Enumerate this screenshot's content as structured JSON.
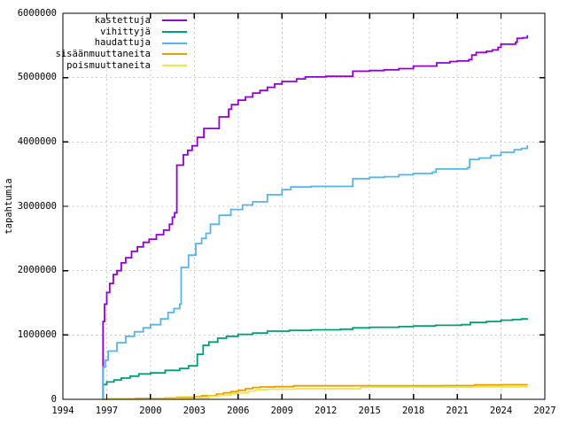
{
  "colors": {
    "background": "#ffffff",
    "border": "#000000",
    "grid": "#c8c8c8",
    "text": "#000000"
  },
  "chart_data": {
    "type": "line",
    "title": "",
    "xlabel": "",
    "ylabel": "tapahtumia",
    "xlim": [
      1994,
      2027
    ],
    "ylim": [
      0,
      6000000
    ],
    "xticks": [
      1994,
      1997,
      2000,
      2003,
      2006,
      2009,
      2012,
      2015,
      2018,
      2021,
      2024,
      2027
    ],
    "yticks": [
      0,
      1000000,
      2000000,
      3000000,
      4000000,
      5000000,
      6000000
    ],
    "grid": true,
    "legend_position": "top-left-inside",
    "interpolation": "step-after",
    "series": [
      {
        "name": "kastettuja",
        "color": "#9400d3",
        "points": [
          [
            1996.7,
            0
          ],
          [
            1996.75,
            1210000
          ],
          [
            1996.85,
            1480000
          ],
          [
            1997.0,
            1660000
          ],
          [
            1997.2,
            1800000
          ],
          [
            1997.45,
            1940000
          ],
          [
            1997.7,
            2000000
          ],
          [
            1998.0,
            2120000
          ],
          [
            1998.3,
            2200000
          ],
          [
            1998.7,
            2300000
          ],
          [
            1999.1,
            2370000
          ],
          [
            1999.5,
            2440000
          ],
          [
            1999.9,
            2490000
          ],
          [
            2000.4,
            2560000
          ],
          [
            2000.9,
            2630000
          ],
          [
            2001.3,
            2720000
          ],
          [
            2001.5,
            2830000
          ],
          [
            2001.65,
            2900000
          ],
          [
            2001.8,
            3640000
          ],
          [
            2002.25,
            3800000
          ],
          [
            2002.55,
            3870000
          ],
          [
            2002.85,
            3940000
          ],
          [
            2003.2,
            4070000
          ],
          [
            2003.65,
            4210000
          ],
          [
            2004.7,
            4390000
          ],
          [
            2005.35,
            4510000
          ],
          [
            2005.55,
            4580000
          ],
          [
            2006.0,
            4650000
          ],
          [
            2006.5,
            4700000
          ],
          [
            2007.0,
            4760000
          ],
          [
            2007.5,
            4800000
          ],
          [
            2008.0,
            4850000
          ],
          [
            2008.5,
            4900000
          ],
          [
            2009.0,
            4940000
          ],
          [
            2010.0,
            4980000
          ],
          [
            2010.6,
            5010000
          ],
          [
            2012.0,
            5020000
          ],
          [
            2013.85,
            5100000
          ],
          [
            2015.0,
            5110000
          ],
          [
            2016.0,
            5120000
          ],
          [
            2017.0,
            5140000
          ],
          [
            2018.0,
            5180000
          ],
          [
            2019.6,
            5230000
          ],
          [
            2020.5,
            5250000
          ],
          [
            2021.0,
            5260000
          ],
          [
            2021.8,
            5280000
          ],
          [
            2022.0,
            5350000
          ],
          [
            2022.3,
            5390000
          ],
          [
            2023.0,
            5410000
          ],
          [
            2023.4,
            5430000
          ],
          [
            2023.8,
            5470000
          ],
          [
            2024.0,
            5520000
          ],
          [
            2025.0,
            5550000
          ],
          [
            2025.1,
            5610000
          ],
          [
            2025.5,
            5620000
          ],
          [
            2025.8,
            5660000
          ]
        ]
      },
      {
        "name": "vihittyjä",
        "color": "#009e73",
        "points": [
          [
            1996.7,
            0
          ],
          [
            1996.75,
            230000
          ],
          [
            1997.0,
            270000
          ],
          [
            1997.5,
            300000
          ],
          [
            1998.0,
            330000
          ],
          [
            1998.6,
            360000
          ],
          [
            1999.2,
            395000
          ],
          [
            2000.0,
            410000
          ],
          [
            2001.0,
            450000
          ],
          [
            2002.0,
            480000
          ],
          [
            2002.6,
            520000
          ],
          [
            2003.2,
            700000
          ],
          [
            2003.6,
            840000
          ],
          [
            2004.0,
            890000
          ],
          [
            2004.6,
            950000
          ],
          [
            2005.2,
            980000
          ],
          [
            2006.0,
            1010000
          ],
          [
            2007.0,
            1030000
          ],
          [
            2008.0,
            1060000
          ],
          [
            2009.5,
            1070000
          ],
          [
            2011.0,
            1080000
          ],
          [
            2013.0,
            1090000
          ],
          [
            2013.85,
            1110000
          ],
          [
            2015.0,
            1120000
          ],
          [
            2017.0,
            1130000
          ],
          [
            2018.0,
            1140000
          ],
          [
            2019.5,
            1150000
          ],
          [
            2021.3,
            1160000
          ],
          [
            2021.9,
            1195000
          ],
          [
            2023.0,
            1210000
          ],
          [
            2024.0,
            1230000
          ],
          [
            2024.8,
            1240000
          ],
          [
            2025.4,
            1250000
          ],
          [
            2025.8,
            1260000
          ]
        ]
      },
      {
        "name": "haudattuja",
        "color": "#56b4e9",
        "points": [
          [
            1996.7,
            0
          ],
          [
            1996.75,
            500000
          ],
          [
            1996.9,
            610000
          ],
          [
            1997.1,
            750000
          ],
          [
            1997.7,
            880000
          ],
          [
            1998.3,
            980000
          ],
          [
            1998.9,
            1050000
          ],
          [
            1999.5,
            1110000
          ],
          [
            2000.0,
            1160000
          ],
          [
            2000.7,
            1250000
          ],
          [
            2001.2,
            1350000
          ],
          [
            2001.6,
            1410000
          ],
          [
            2002.0,
            1480000
          ],
          [
            2002.1,
            2050000
          ],
          [
            2002.6,
            2240000
          ],
          [
            2003.1,
            2420000
          ],
          [
            2003.5,
            2500000
          ],
          [
            2003.8,
            2580000
          ],
          [
            2004.1,
            2720000
          ],
          [
            2004.7,
            2860000
          ],
          [
            2005.5,
            2950000
          ],
          [
            2006.3,
            3020000
          ],
          [
            2007.0,
            3070000
          ],
          [
            2008.0,
            3180000
          ],
          [
            2009.0,
            3260000
          ],
          [
            2009.6,
            3300000
          ],
          [
            2011.0,
            3310000
          ],
          [
            2013.85,
            3430000
          ],
          [
            2015.0,
            3450000
          ],
          [
            2016.0,
            3460000
          ],
          [
            2017.0,
            3490000
          ],
          [
            2018.0,
            3510000
          ],
          [
            2019.3,
            3530000
          ],
          [
            2019.55,
            3580000
          ],
          [
            2021.7,
            3600000
          ],
          [
            2021.85,
            3730000
          ],
          [
            2022.5,
            3750000
          ],
          [
            2023.3,
            3790000
          ],
          [
            2024.0,
            3840000
          ],
          [
            2024.9,
            3880000
          ],
          [
            2025.4,
            3900000
          ],
          [
            2025.8,
            3950000
          ]
        ]
      },
      {
        "name": "sisäänmuuttaneita",
        "color": "#e69f00",
        "points": [
          [
            1996.7,
            0
          ],
          [
            1997.0,
            8000
          ],
          [
            1999.0,
            15000
          ],
          [
            2001.0,
            20000
          ],
          [
            2001.8,
            30000
          ],
          [
            2003.0,
            40000
          ],
          [
            2003.5,
            55000
          ],
          [
            2004.5,
            80000
          ],
          [
            2005.0,
            100000
          ],
          [
            2005.5,
            120000
          ],
          [
            2006.0,
            140000
          ],
          [
            2006.5,
            165000
          ],
          [
            2007.0,
            185000
          ],
          [
            2007.5,
            192000
          ],
          [
            2008.5,
            197000
          ],
          [
            2009.8,
            210000
          ],
          [
            2013.85,
            212000
          ],
          [
            2020.0,
            213000
          ],
          [
            2022.1,
            215000
          ],
          [
            2022.2,
            224000
          ],
          [
            2024.0,
            227000
          ],
          [
            2025.8,
            230000
          ]
        ]
      },
      {
        "name": "poismuuttaneita",
        "color": "#f0e442",
        "points": [
          [
            1996.7,
            0
          ],
          [
            1997.0,
            4000
          ],
          [
            2000.0,
            10000
          ],
          [
            2001.8,
            15000
          ],
          [
            2003.0,
            25000
          ],
          [
            2004.0,
            45000
          ],
          [
            2004.7,
            65000
          ],
          [
            2005.5,
            85000
          ],
          [
            2006.0,
            100000
          ],
          [
            2006.7,
            130000
          ],
          [
            2007.2,
            150000
          ],
          [
            2008.0,
            158000
          ],
          [
            2010.0,
            162000
          ],
          [
            2014.3,
            165000
          ],
          [
            2014.4,
            190000
          ],
          [
            2022.1,
            193000
          ],
          [
            2022.3,
            196000
          ],
          [
            2025.8,
            200000
          ]
        ]
      }
    ]
  }
}
